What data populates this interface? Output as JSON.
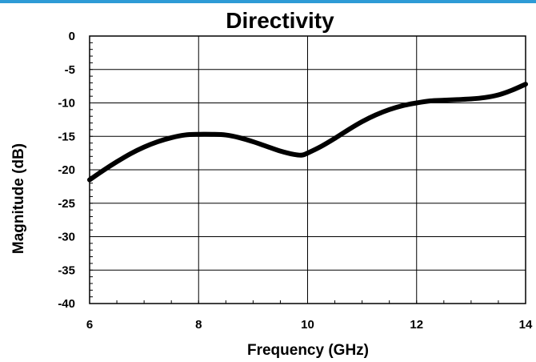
{
  "colors": {
    "accent_bar": "#2E9BD6",
    "line": "#000000",
    "grid": "#000000"
  },
  "chart_data": {
    "type": "line",
    "title": "Directivity",
    "xlabel": "Frequency  (GHz)",
    "ylabel": "Magnitude (dB)",
    "xlim": [
      6,
      14
    ],
    "ylim": [
      -40,
      0
    ],
    "xticks": [
      6,
      8,
      10,
      12,
      14
    ],
    "yticks": [
      0,
      -5,
      -10,
      -15,
      -20,
      -25,
      -30,
      -35,
      -40
    ],
    "grid": true,
    "legend": "none",
    "series": [
      {
        "x": [
          6.0,
          6.25,
          6.5,
          6.75,
          7.0,
          7.25,
          7.5,
          7.75,
          8.0,
          8.25,
          8.5,
          8.75,
          9.0,
          9.25,
          9.5,
          9.75,
          9.9,
          10.0,
          10.25,
          10.5,
          10.75,
          11.0,
          11.25,
          11.5,
          11.75,
          12.0,
          12.25,
          12.5,
          12.75,
          13.0,
          13.25,
          13.5,
          13.75,
          14.0
        ],
        "y": [
          -21.5,
          -20.1,
          -18.8,
          -17.6,
          -16.6,
          -15.8,
          -15.2,
          -14.8,
          -14.7,
          -14.7,
          -14.8,
          -15.2,
          -15.8,
          -16.5,
          -17.2,
          -17.7,
          -17.8,
          -17.5,
          -16.5,
          -15.3,
          -14.0,
          -12.8,
          -11.8,
          -11.0,
          -10.4,
          -10.0,
          -9.7,
          -9.6,
          -9.5,
          -9.4,
          -9.2,
          -8.8,
          -8.1,
          -7.2
        ]
      }
    ]
  }
}
